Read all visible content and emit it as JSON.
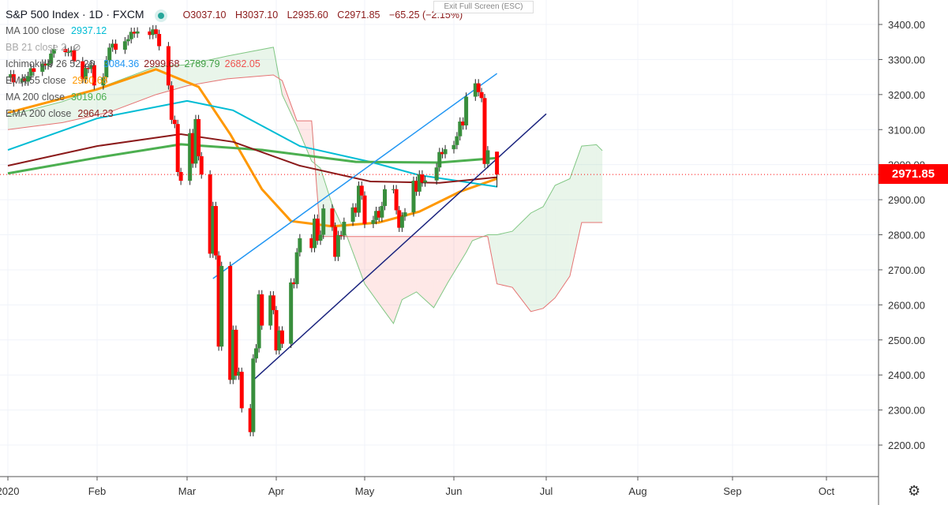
{
  "header": {
    "title": "S&P 500 Index · 1D · FXCM",
    "open": "O3037.10",
    "high": "H3037.10",
    "low": "L2935.60",
    "close": "C2971.85",
    "change": "−65.25 (−2.15%)",
    "exit_fullscreen": "Exit Full Screen (ESC)"
  },
  "indicators": [
    {
      "label": "MA 100 close",
      "value": "2937.12",
      "color": "#00bcd4"
    },
    {
      "label": "BB 21 close 2",
      "value": "",
      "color": "#aaaaaa"
    },
    {
      "label": "Ichimoku 9 26 52 26",
      "values": [
        "3084.36",
        "2999.68",
        "2789.79",
        "2682.05"
      ],
      "colors": [
        "#2196f3",
        "#8b1a1a",
        "#43a047",
        "#ef5350"
      ]
    },
    {
      "label": "EMA 55 close",
      "value": "2960.68",
      "color": "#ff9800"
    },
    {
      "label": "MA 200 close",
      "value": "3019.06",
      "color": "#4caf50"
    },
    {
      "label": "EMA 200 close",
      "value": "2964.23",
      "color": "#8b1a1a"
    }
  ],
  "current_price": "2971.85",
  "chart_data": {
    "type": "candlestick",
    "ylim": [
      2150,
      3450
    ],
    "y_ticks": [
      "3400.00",
      "3300.00",
      "3200.00",
      "3100.00",
      "3000.00",
      "2900.00",
      "2800.00",
      "2700.00",
      "2600.00",
      "2500.00",
      "2400.00",
      "2300.00",
      "2200.00"
    ],
    "x_ticks": [
      "2020",
      "Feb",
      "Mar",
      "Apr",
      "May",
      "Jun",
      "Jul",
      "Aug",
      "Sep",
      "Oct"
    ],
    "colors": {
      "up": "#388e3c",
      "down": "#ff0000"
    },
    "closes": [
      [
        "2020-01-02",
        3258
      ],
      [
        "2020-01-03",
        3235
      ],
      [
        "2020-01-06",
        3246
      ],
      [
        "2020-01-07",
        3237
      ],
      [
        "2020-01-08",
        3253
      ],
      [
        "2020-01-09",
        3275
      ],
      [
        "2020-01-10",
        3265
      ],
      [
        "2020-01-13",
        3288
      ],
      [
        "2020-01-14",
        3283
      ],
      [
        "2020-01-15",
        3289
      ],
      [
        "2020-01-16",
        3317
      ],
      [
        "2020-01-17",
        3330
      ],
      [
        "2020-01-21",
        3321
      ],
      [
        "2020-01-22",
        3321
      ],
      [
        "2020-01-23",
        3326
      ],
      [
        "2020-01-24",
        3295
      ],
      [
        "2020-01-27",
        3244
      ],
      [
        "2020-01-28",
        3276
      ],
      [
        "2020-01-29",
        3273
      ],
      [
        "2020-01-30",
        3284
      ],
      [
        "2020-01-31",
        3226
      ],
      [
        "2020-02-03",
        3249
      ],
      [
        "2020-02-04",
        3298
      ],
      [
        "2020-02-05",
        3334
      ],
      [
        "2020-02-06",
        3345
      ],
      [
        "2020-02-07",
        3328
      ],
      [
        "2020-02-10",
        3352
      ],
      [
        "2020-02-11",
        3358
      ],
      [
        "2020-02-12",
        3379
      ],
      [
        "2020-02-13",
        3374
      ],
      [
        "2020-02-14",
        3380
      ],
      [
        "2020-02-18",
        3370
      ],
      [
        "2020-02-19",
        3386
      ],
      [
        "2020-02-20",
        3373
      ],
      [
        "2020-02-21",
        3338
      ],
      [
        "2020-02-24",
        3226
      ],
      [
        "2020-02-25",
        3128
      ],
      [
        "2020-02-26",
        3116
      ],
      [
        "2020-02-27",
        2979
      ],
      [
        "2020-02-28",
        2954
      ],
      [
        "2020-03-02",
        3090
      ],
      [
        "2020-03-03",
        3003
      ],
      [
        "2020-03-04",
        3130
      ],
      [
        "2020-03-05",
        3024
      ],
      [
        "2020-03-06",
        2972
      ],
      [
        "2020-03-09",
        2746
      ],
      [
        "2020-03-10",
        2882
      ],
      [
        "2020-03-11",
        2741
      ],
      [
        "2020-03-12",
        2481
      ],
      [
        "2020-03-13",
        2711
      ],
      [
        "2020-03-16",
        2386
      ],
      [
        "2020-03-17",
        2529
      ],
      [
        "2020-03-18",
        2398
      ],
      [
        "2020-03-19",
        2409
      ],
      [
        "2020-03-20",
        2305
      ],
      [
        "2020-03-23",
        2237
      ],
      [
        "2020-03-24",
        2447
      ],
      [
        "2020-03-25",
        2476
      ],
      [
        "2020-03-26",
        2630
      ],
      [
        "2020-03-27",
        2541
      ],
      [
        "2020-03-30",
        2627
      ],
      [
        "2020-03-31",
        2585
      ],
      [
        "2020-04-01",
        2470
      ],
      [
        "2020-04-02",
        2527
      ],
      [
        "2020-04-03",
        2489
      ],
      [
        "2020-04-06",
        2664
      ],
      [
        "2020-04-07",
        2659
      ],
      [
        "2020-04-08",
        2750
      ],
      [
        "2020-04-09",
        2790
      ],
      [
        "2020-04-13",
        2762
      ],
      [
        "2020-04-14",
        2846
      ],
      [
        "2020-04-15",
        2783
      ],
      [
        "2020-04-16",
        2800
      ],
      [
        "2020-04-17",
        2875
      ],
      [
        "2020-04-20",
        2823
      ],
      [
        "2020-04-21",
        2737
      ],
      [
        "2020-04-22",
        2799
      ],
      [
        "2020-04-23",
        2798
      ],
      [
        "2020-04-24",
        2837
      ],
      [
        "2020-04-27",
        2878
      ],
      [
        "2020-04-28",
        2863
      ],
      [
        "2020-04-29",
        2940
      ],
      [
        "2020-04-30",
        2912
      ],
      [
        "2020-05-01",
        2831
      ],
      [
        "2020-05-04",
        2842
      ],
      [
        "2020-05-05",
        2868
      ],
      [
        "2020-05-06",
        2849
      ],
      [
        "2020-05-07",
        2882
      ],
      [
        "2020-05-08",
        2930
      ],
      [
        "2020-05-11",
        2930
      ],
      [
        "2020-05-12",
        2870
      ],
      [
        "2020-05-13",
        2820
      ],
      [
        "2020-05-14",
        2852
      ],
      [
        "2020-05-15",
        2864
      ],
      [
        "2020-05-18",
        2954
      ],
      [
        "2020-05-19",
        2923
      ],
      [
        "2020-05-20",
        2972
      ],
      [
        "2020-05-21",
        2949
      ],
      [
        "2020-05-22",
        2955
      ],
      [
        "2020-05-26",
        2992
      ],
      [
        "2020-05-27",
        3036
      ],
      [
        "2020-05-28",
        3030
      ],
      [
        "2020-05-29",
        3044
      ],
      [
        "2020-06-01",
        3056
      ],
      [
        "2020-06-02",
        3081
      ],
      [
        "2020-06-03",
        3123
      ],
      [
        "2020-06-04",
        3112
      ],
      [
        "2020-06-05",
        3194
      ],
      [
        "2020-06-08",
        3232
      ],
      [
        "2020-06-09",
        3207
      ],
      [
        "2020-06-10",
        3190
      ],
      [
        "2020-06-11",
        3002
      ],
      [
        "2020-06-12",
        3041
      ]
    ],
    "last_bar": {
      "date": "2020-06-15",
      "open": 3037.1,
      "high": 3037.1,
      "low": 2935.6,
      "close": 2971.85
    },
    "lines": [
      {
        "name": "EMA 55 close",
        "color": "#ff9800",
        "width": 3,
        "points": [
          [
            "2020-01-01",
            3148
          ],
          [
            "2020-02-01",
            3215
          ],
          [
            "2020-02-20",
            3272
          ],
          [
            "2020-03-05",
            3222
          ],
          [
            "2020-03-16",
            3087
          ],
          [
            "2020-03-27",
            2930
          ],
          [
            "2020-04-06",
            2839
          ],
          [
            "2020-04-20",
            2824
          ],
          [
            "2020-05-06",
            2835
          ],
          [
            "2020-05-20",
            2866
          ],
          [
            "2020-06-03",
            2923
          ],
          [
            "2020-06-15",
            2960
          ]
        ]
      },
      {
        "name": "MA 100 close",
        "color": "#00bcd4",
        "width": 2,
        "points": [
          [
            "2020-01-01",
            3042
          ],
          [
            "2020-02-01",
            3132
          ],
          [
            "2020-03-01",
            3182
          ],
          [
            "2020-03-17",
            3155
          ],
          [
            "2020-04-09",
            3053
          ],
          [
            "2020-05-03",
            3008
          ],
          [
            "2020-05-20",
            2970
          ],
          [
            "2020-06-15",
            2937
          ]
        ]
      },
      {
        "name": "MA 200 close",
        "color": "#4caf50",
        "width": 3,
        "points": [
          [
            "2020-01-01",
            2975
          ],
          [
            "2020-02-01",
            3020
          ],
          [
            "2020-02-28",
            3058
          ],
          [
            "2020-03-27",
            3042
          ],
          [
            "2020-04-28",
            3008
          ],
          [
            "2020-05-27",
            3006
          ],
          [
            "2020-06-15",
            3019
          ]
        ]
      },
      {
        "name": "EMA 200 close",
        "color": "#8b1a1a",
        "width": 2,
        "points": [
          [
            "2020-01-01",
            2997
          ],
          [
            "2020-02-01",
            3053
          ],
          [
            "2020-02-28",
            3087
          ],
          [
            "2020-03-17",
            3065
          ],
          [
            "2020-04-09",
            2997
          ],
          [
            "2020-05-03",
            2952
          ],
          [
            "2020-05-27",
            2948
          ],
          [
            "2020-06-15",
            2964
          ]
        ]
      },
      {
        "name": "upper trendline",
        "color": "#2196f3",
        "width": 1.5,
        "points": [
          [
            "2020-03-10",
            2675
          ],
          [
            "2020-06-15",
            3260
          ]
        ]
      },
      {
        "name": "lower trendline",
        "color": "#1a237e",
        "width": 1.5,
        "points": [
          [
            "2020-03-24",
            2385
          ],
          [
            "2020-07-01",
            3145
          ]
        ]
      }
    ],
    "ichimoku_cloud": [
      [
        "2020-01-01",
        3140,
        3100
      ],
      [
        "2020-01-20",
        3180,
        3120
      ],
      [
        "2020-02-05",
        3230,
        3150
      ],
      [
        "2020-02-20",
        3280,
        3200
      ],
      [
        "2020-03-01",
        3285,
        3225
      ],
      [
        "2020-03-15",
        3310,
        3245
      ],
      [
        "2020-03-31",
        3335,
        3256
      ],
      [
        "2020-04-03",
        3200,
        3240
      ],
      [
        "2020-04-08",
        3110,
        3125
      ],
      [
        "2020-04-13",
        3010,
        3125
      ],
      [
        "2020-04-16",
        2990,
        2795
      ],
      [
        "2020-04-20",
        2885,
        2795
      ],
      [
        "2020-04-25",
        2795,
        2795
      ],
      [
        "2020-05-01",
        2660,
        2795
      ],
      [
        "2020-05-06",
        2603,
        2795
      ],
      [
        "2020-05-11",
        2547,
        2795
      ],
      [
        "2020-05-14",
        2615,
        2795
      ],
      [
        "2020-05-19",
        2637,
        2795
      ],
      [
        "2020-05-25",
        2592,
        2795
      ],
      [
        "2020-05-30",
        2665,
        2795
      ],
      [
        "2020-06-05",
        2750,
        2795
      ],
      [
        "2020-06-07",
        2783,
        2795
      ],
      [
        "2020-06-12",
        2800,
        2795
      ],
      [
        "2020-06-15",
        2800,
        2660
      ],
      [
        "2020-06-20",
        2810,
        2650
      ],
      [
        "2020-06-26",
        2862,
        2581
      ],
      [
        "2020-06-30",
        2880,
        2590
      ],
      [
        "2020-07-04",
        2941,
        2620
      ],
      [
        "2020-07-09",
        2960,
        2682
      ],
      [
        "2020-07-13",
        3053,
        2835
      ],
      [
        "2020-07-18",
        3057,
        2835
      ],
      [
        "2020-07-20",
        3040,
        2835
      ]
    ]
  }
}
